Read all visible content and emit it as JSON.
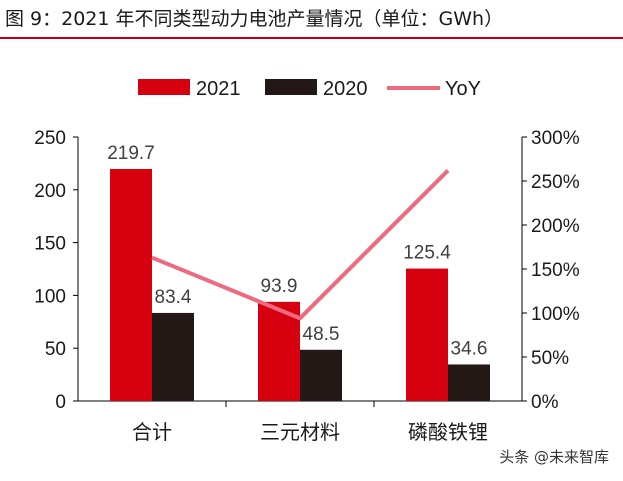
{
  "figure": {
    "title": "图 9：2021 年不同类型动力电池产量情况（单位：GWh）",
    "watermark": "头条 @未来智库"
  },
  "colors": {
    "accent": "#c0001a",
    "series_2021": "#d7000f",
    "series_2020": "#231815",
    "yoy_line": "#ed6a7f",
    "axis": "#000000",
    "text": "#1a1a1a",
    "label_text": "#404040"
  },
  "chart_data": {
    "type": "bar",
    "categories": [
      "合计",
      "三元材料",
      "磷酸铁锂"
    ],
    "series": [
      {
        "name": "2021",
        "type": "bar",
        "axis": "left",
        "values": [
          219.7,
          93.9,
          125.4
        ],
        "labels": [
          "219.7",
          "93.9",
          "125.4"
        ]
      },
      {
        "name": "2020",
        "type": "bar",
        "axis": "left",
        "values": [
          83.4,
          48.5,
          34.6
        ],
        "labels": [
          "83.4",
          "48.5",
          "34.6"
        ]
      },
      {
        "name": "YoY",
        "type": "line",
        "axis": "right",
        "values": [
          163,
          94,
          262
        ]
      }
    ],
    "y_left": {
      "ylim": [
        0,
        250
      ],
      "ticks": [
        0,
        50,
        100,
        150,
        200,
        250
      ],
      "tick_labels": [
        "0",
        "50",
        "100",
        "150",
        "200",
        "250"
      ]
    },
    "y_right": {
      "ylim": [
        0,
        300
      ],
      "ticks": [
        0,
        50,
        100,
        150,
        200,
        250,
        300
      ],
      "tick_labels": [
        "0%",
        "50%",
        "100%",
        "150%",
        "200%",
        "250%",
        "300%"
      ]
    },
    "legend": {
      "position": "top",
      "entries": [
        "2021",
        "2020",
        "YoY"
      ]
    },
    "grid": false
  }
}
